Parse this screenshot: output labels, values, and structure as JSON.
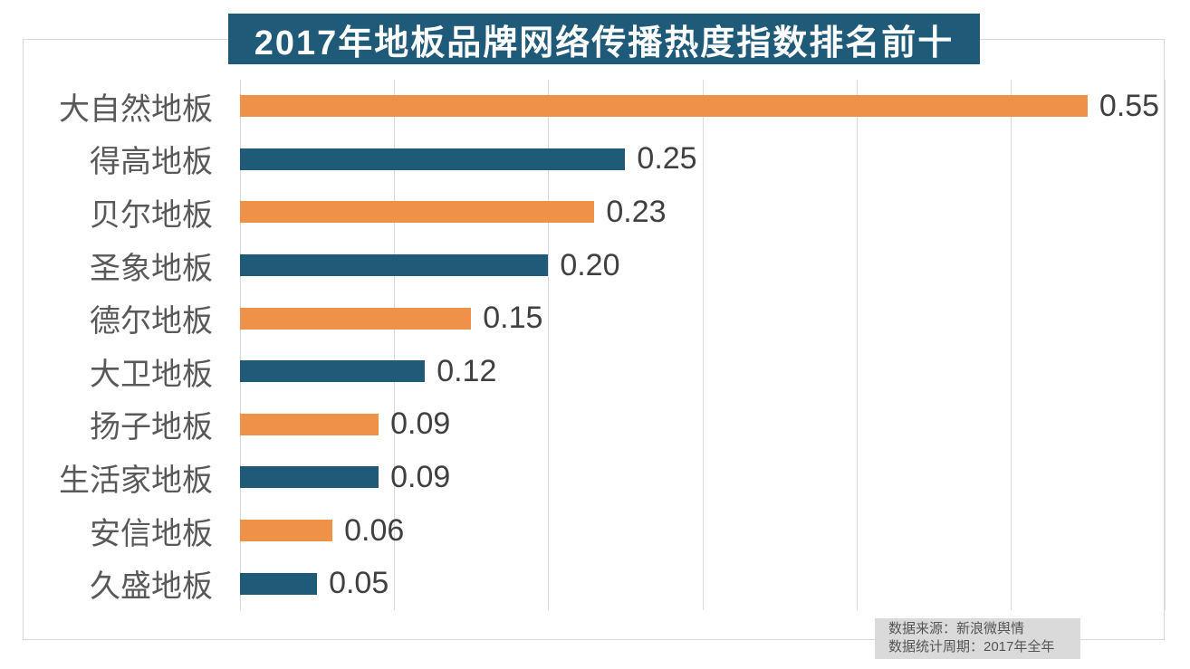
{
  "title": "2017年地板品牌网络传播热度指数排名前十",
  "chart_data": {
    "type": "bar",
    "orientation": "horizontal",
    "title": "2017年地板品牌网络传播热度指数排名前十",
    "categories": [
      "大自然地板",
      "得高地板",
      "贝尔地板",
      "圣象地板",
      "德尔地板",
      "大卫地板",
      "扬子地板",
      "生活家地板",
      "安信地板",
      "久盛地板"
    ],
    "values": [
      0.55,
      0.25,
      0.23,
      0.2,
      0.15,
      0.12,
      0.09,
      0.09,
      0.06,
      0.05
    ],
    "value_labels": [
      "0.55",
      "0.25",
      "0.23",
      "0.20",
      "0.15",
      "0.12",
      "0.09",
      "0.09",
      "0.06",
      "0.05"
    ],
    "xlabel": "",
    "ylabel": "",
    "xlim": [
      0,
      0.6
    ],
    "gridline_interval": 0.1,
    "grid": true,
    "legend": false,
    "bar_color_pattern": [
      "#ef9148",
      "#1f5a78"
    ]
  },
  "colors": {
    "orange_bar": "#ef9148",
    "blue_bar": "#1f5a78",
    "title_background": "#1f5a78",
    "title_text": "#ffffff",
    "gridline": "#d9d9d9",
    "category_label": "#595959",
    "value_label": "#404040",
    "source_background": "#dadada",
    "source_text": "#555555"
  },
  "source_note": {
    "line1": "数据来源：新浪微舆情",
    "line2": "数据统计周期：2017年全年"
  }
}
